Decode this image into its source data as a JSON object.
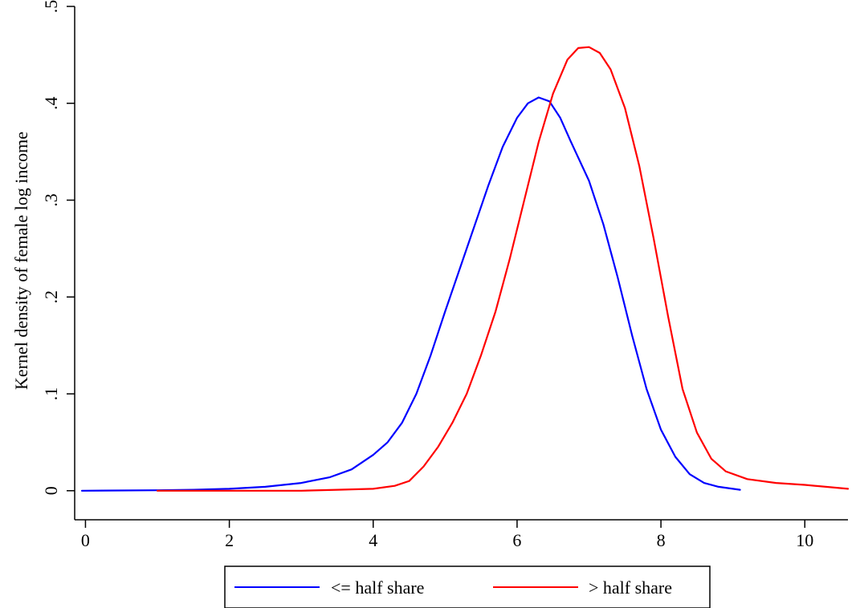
{
  "chart_data": {
    "type": "line",
    "title": "",
    "xlabel": "",
    "ylabel": "Kernel density of female log income",
    "xlim": [
      -0.15,
      10.6
    ],
    "ylim": [
      -0.03,
      0.5
    ],
    "xticks": [
      0,
      2,
      4,
      6,
      8,
      10
    ],
    "xtick_labels": [
      "0",
      "2",
      "4",
      "6",
      "8",
      "10"
    ],
    "yticks": [
      0,
      0.1,
      0.2,
      0.3,
      0.4,
      0.5
    ],
    "ytick_labels": [
      "0",
      ".1",
      ".2",
      ".3",
      ".4",
      ".5"
    ],
    "grid": false,
    "legend_position": "bottom",
    "series": [
      {
        "name": "<= half share",
        "color": "#0000ff",
        "points": [
          [
            -0.05,
            0.0
          ],
          [
            1.0,
            0.0005
          ],
          [
            1.5,
            0.001
          ],
          [
            2.0,
            0.002
          ],
          [
            2.5,
            0.004
          ],
          [
            3.0,
            0.008
          ],
          [
            3.4,
            0.014
          ],
          [
            3.7,
            0.022
          ],
          [
            4.0,
            0.037
          ],
          [
            4.2,
            0.05
          ],
          [
            4.4,
            0.07
          ],
          [
            4.6,
            0.1
          ],
          [
            4.8,
            0.14
          ],
          [
            5.0,
            0.185
          ],
          [
            5.3,
            0.25
          ],
          [
            5.6,
            0.315
          ],
          [
            5.8,
            0.355
          ],
          [
            6.0,
            0.385
          ],
          [
            6.15,
            0.4
          ],
          [
            6.3,
            0.406
          ],
          [
            6.45,
            0.402
          ],
          [
            6.6,
            0.385
          ],
          [
            6.75,
            0.36
          ],
          [
            7.0,
            0.32
          ],
          [
            7.2,
            0.275
          ],
          [
            7.4,
            0.22
          ],
          [
            7.6,
            0.16
          ],
          [
            7.8,
            0.105
          ],
          [
            8.0,
            0.063
          ],
          [
            8.2,
            0.035
          ],
          [
            8.4,
            0.017
          ],
          [
            8.6,
            0.008
          ],
          [
            8.8,
            0.004
          ],
          [
            9.1,
            0.001
          ]
        ]
      },
      {
        "name": "> half share",
        "color": "#ff0000",
        "points": [
          [
            1.0,
            0.0
          ],
          [
            2.0,
            0.0
          ],
          [
            3.0,
            0.0
          ],
          [
            3.5,
            0.001
          ],
          [
            4.0,
            0.002
          ],
          [
            4.3,
            0.005
          ],
          [
            4.5,
            0.01
          ],
          [
            4.7,
            0.025
          ],
          [
            4.9,
            0.045
          ],
          [
            5.1,
            0.07
          ],
          [
            5.3,
            0.1
          ],
          [
            5.5,
            0.14
          ],
          [
            5.7,
            0.185
          ],
          [
            5.9,
            0.24
          ],
          [
            6.1,
            0.3
          ],
          [
            6.3,
            0.36
          ],
          [
            6.5,
            0.41
          ],
          [
            6.7,
            0.445
          ],
          [
            6.85,
            0.457
          ],
          [
            7.0,
            0.458
          ],
          [
            7.15,
            0.452
          ],
          [
            7.3,
            0.435
          ],
          [
            7.5,
            0.395
          ],
          [
            7.7,
            0.335
          ],
          [
            7.9,
            0.26
          ],
          [
            8.1,
            0.18
          ],
          [
            8.3,
            0.105
          ],
          [
            8.5,
            0.06
          ],
          [
            8.7,
            0.033
          ],
          [
            8.9,
            0.02
          ],
          [
            9.2,
            0.012
          ],
          [
            9.6,
            0.008
          ],
          [
            10.0,
            0.006
          ],
          [
            10.6,
            0.002
          ]
        ]
      }
    ]
  }
}
